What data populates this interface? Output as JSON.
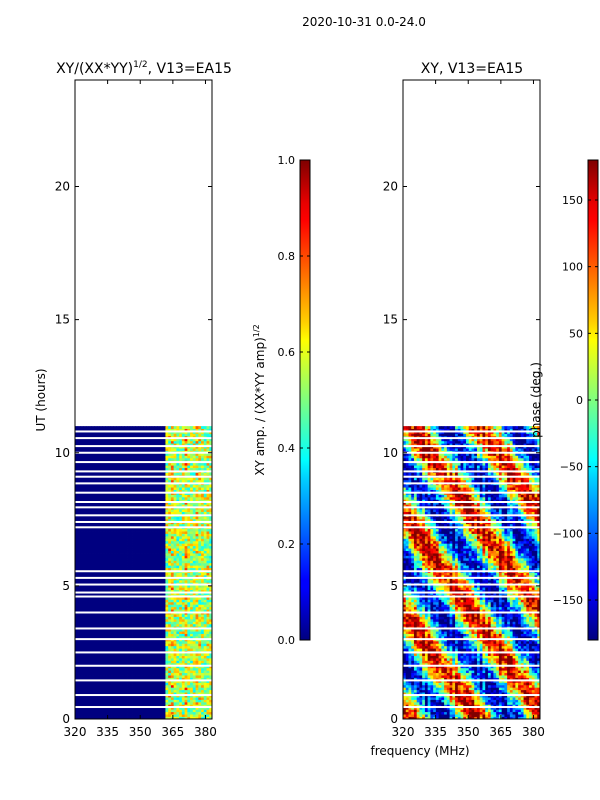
{
  "figure_title": "2020-10-31 0.0-24.0",
  "shared_xlabel": "frequency (MHz)",
  "chart_data": [
    {
      "type": "heatmap",
      "title_main": "XY/(XX*YY)",
      "title_exp": "1/2",
      "title_tail": ", V13=EA15",
      "xlabel": "",
      "ylabel": "UT (hours)",
      "xlim": [
        320,
        383
      ],
      "ylim": [
        0,
        24
      ],
      "xticks": [
        320,
        335,
        350,
        365,
        380
      ],
      "yticks": [
        0,
        5,
        10,
        15,
        20
      ],
      "data_ut_range": [
        0,
        11
      ],
      "data_gap_rows_ut": [
        0.45,
        0.9,
        1.45,
        2.0,
        2.5,
        3.0,
        3.4,
        4.0,
        4.6,
        4.75,
        5.05,
        5.3,
        5.55,
        7.2,
        7.4,
        7.65,
        7.95,
        8.15,
        8.5,
        8.85,
        9.1,
        9.3,
        9.65,
        10.0,
        10.25,
        10.55,
        10.8
      ],
      "low_amplitude_band_mhz": [
        320,
        361
      ],
      "colorbar": {
        "label_main": "XY amp. / (XX*YY amp)",
        "label_exp": "1/2",
        "range": [
          0.0,
          1.0
        ],
        "ticks": [
          "0.0",
          "0.2",
          "0.4",
          "0.6",
          "0.8",
          "1.0"
        ]
      }
    },
    {
      "type": "heatmap",
      "title_main": "XY, V13=EA15",
      "xlabel": "frequency (MHz)",
      "ylabel": "",
      "xlim": [
        320,
        383
      ],
      "ylim": [
        0,
        24
      ],
      "xticks": [
        320,
        335,
        350,
        365,
        380
      ],
      "yticks": [
        0,
        5,
        10,
        15,
        20
      ],
      "data_ut_range": [
        0,
        11
      ],
      "data_gap_rows_ut": [
        0.45,
        0.9,
        1.45,
        2.0,
        2.5,
        3.0,
        3.4,
        4.0,
        4.6,
        4.75,
        5.05,
        5.3,
        5.55,
        7.2,
        7.4,
        7.65,
        7.95,
        8.15,
        8.5,
        8.85,
        9.1,
        9.3,
        9.65,
        10.0,
        10.25,
        10.55,
        10.8
      ],
      "colorbar": {
        "label_main": "phase (deg.)",
        "range": [
          -180,
          180
        ],
        "ticks": [
          "−150",
          "−100",
          "−50",
          "0",
          "50",
          "100",
          "150"
        ],
        "tick_values": [
          -150,
          -100,
          -50,
          0,
          50,
          100,
          150
        ]
      }
    }
  ],
  "colors": {
    "jet_low": "#00007f",
    "jet_high": "#7f0000",
    "frame": "#000000",
    "gap": "#ffffff"
  }
}
